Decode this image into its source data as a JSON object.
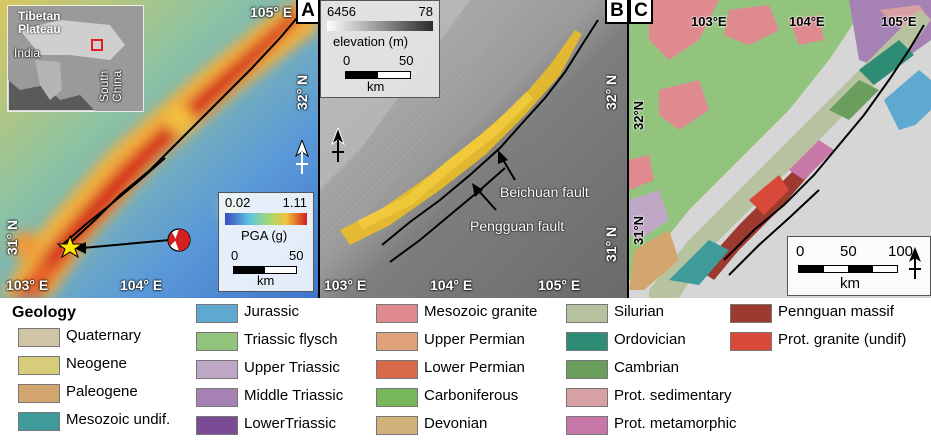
{
  "panels": {
    "a": {
      "letter": "A",
      "inset": {
        "plateau": "Tibetan\nPlateau",
        "south_china": "South\nChina",
        "india": "India"
      },
      "coords": {
        "top_lon": "105° E",
        "lat32": "32° N",
        "lat31": "31° N",
        "lon103": "103° E",
        "lon104": "104° E"
      },
      "pga_legend": {
        "min": "0.02",
        "max": "1.11",
        "label": "PGA (g)",
        "scale_start": "0",
        "scale_end": "50",
        "scale_unit": "km"
      },
      "colors": {
        "low": "#2b6fd6",
        "high": "#d02020",
        "epicenter": "#ffe600"
      }
    },
    "b": {
      "letter": "B",
      "elev_legend": {
        "min": "6456",
        "max": "78",
        "label": "elevation (m)",
        "scale_start": "0",
        "scale_end": "50",
        "scale_unit": "km"
      },
      "coords": {
        "lat32": "32° N",
        "lat31": "31° N",
        "lon103": "103° E",
        "lon104": "104° E",
        "lon105": "105° E"
      },
      "faults": {
        "beichuan": "Beichuan fault",
        "pengguan": "Pengguan fault"
      },
      "colors": {
        "landslides": "#f0c020"
      }
    },
    "c": {
      "letter": "C",
      "coords": {
        "lon103": "103°E",
        "lon104": "104°E",
        "lon105": "105°E",
        "lat32": "32°N",
        "lat31": "31°N"
      },
      "scale": {
        "start": "0",
        "mid": "50",
        "end": "100",
        "unit": "km"
      }
    }
  },
  "legend": {
    "title": "Geology",
    "items": [
      {
        "label": "Quaternary",
        "color": "#cfc4a6"
      },
      {
        "label": "Neogene",
        "color": "#d6cc7a"
      },
      {
        "label": "Paleogene",
        "color": "#d2a66e"
      },
      {
        "label": "Mesozoic undif.",
        "color": "#3f9a9a"
      },
      {
        "label": "Jurassic",
        "color": "#5fa9d0"
      },
      {
        "label": "Triassic flysch",
        "color": "#93c47d"
      },
      {
        "label": "Upper Triassic",
        "color": "#bfa8c6"
      },
      {
        "label": "Middle Triassic",
        "color": "#a681b4"
      },
      {
        "label": "LowerTriassic",
        "color": "#7b4c95"
      },
      {
        "label": "Mesozoic granite",
        "color": "#de8a8f"
      },
      {
        "label": "Upper Permian",
        "color": "#e0a27c"
      },
      {
        "label": "Lower Permian",
        "color": "#d86a4b"
      },
      {
        "label": "Carboniferous",
        "color": "#78b75a"
      },
      {
        "label": "Devonian",
        "color": "#d2b07a"
      },
      {
        "label": "Silurian",
        "color": "#b6c2a0"
      },
      {
        "label": "Ordovician",
        "color": "#2e8b74"
      },
      {
        "label": "Cambrian",
        "color": "#6b9e5c"
      },
      {
        "label": "Prot. sedimentary",
        "color": "#d7a1a4"
      },
      {
        "label": "Prot. metamorphic",
        "color": "#c878a8"
      },
      {
        "label": "Pennguan massif",
        "color": "#9c3a30"
      },
      {
        "label": "Prot. granite (undif)",
        "color": "#d9493a"
      }
    ]
  }
}
